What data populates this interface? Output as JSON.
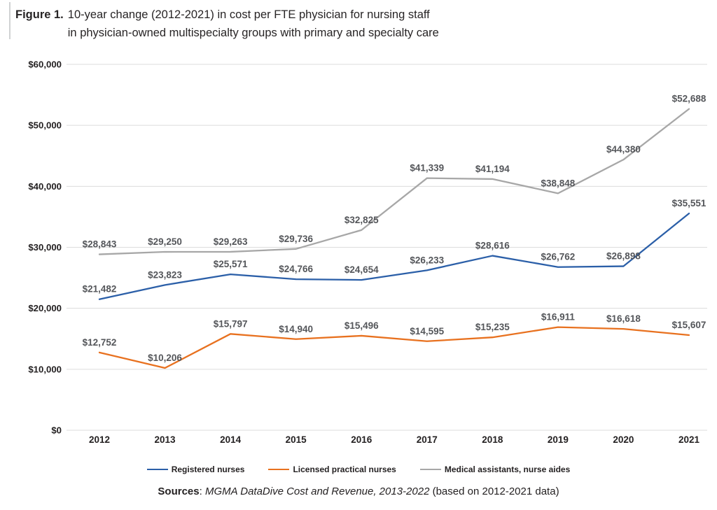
{
  "figure": {
    "label": "Figure 1.",
    "title_line1": "10-year change (2012-2021) in cost per FTE physician for nursing staff",
    "title_line2": "in physician-owned multispecialty groups with primary and specialty care"
  },
  "chart_data": {
    "type": "line",
    "x": [
      2012,
      2013,
      2014,
      2015,
      2016,
      2017,
      2018,
      2019,
      2020,
      2021
    ],
    "series": [
      {
        "name": "Registered nurses",
        "color": "#2b5fa8",
        "values": [
          21482,
          23823,
          25571,
          24766,
          24654,
          26233,
          28616,
          26762,
          26898,
          35551
        ]
      },
      {
        "name": "Licensed practical nurses",
        "color": "#e8711f",
        "values": [
          12752,
          10206,
          15797,
          14940,
          15496,
          14595,
          15235,
          16911,
          16618,
          15607
        ]
      },
      {
        "name": "Medical assistants, nurse aides",
        "color": "#a7a7a7",
        "values": [
          28843,
          29250,
          29263,
          29736,
          32825,
          41339,
          41194,
          38848,
          44380,
          52688
        ]
      }
    ],
    "ylim": [
      0,
      60000
    ],
    "ytick_step": 10000,
    "ytick_labels": [
      "$0",
      "$10,000",
      "$20,000",
      "$30,000",
      "$40,000",
      "$50,000",
      "$60,000"
    ],
    "grid": true,
    "data_labels": true,
    "data_label_prefix": "$",
    "legend_position": "bottom"
  },
  "sources": {
    "label": "Sources",
    "separator": ": ",
    "italic_part": "MGMA DataDive Cost and Revenue, 2013-2022",
    "suffix": " (based on 2012-2021 data)"
  }
}
